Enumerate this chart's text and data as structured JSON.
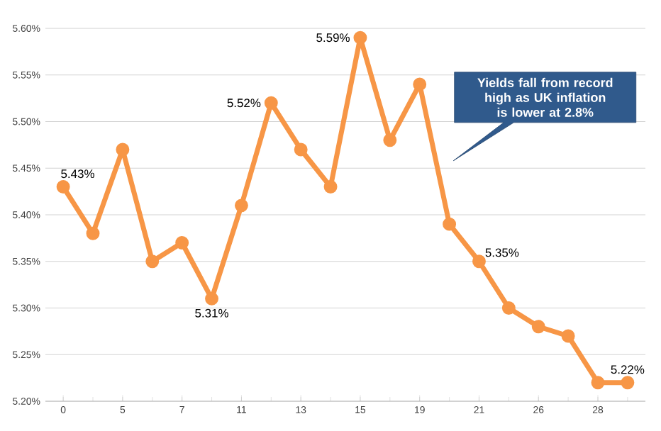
{
  "chart_data": {
    "type": "line",
    "categories": [
      "0",
      null,
      "5",
      null,
      "7",
      null,
      "11",
      null,
      "13",
      null,
      "15",
      null,
      "19",
      null,
      "21",
      null,
      "26",
      null,
      "28",
      null
    ],
    "values": [
      5.43,
      5.38,
      5.47,
      5.35,
      5.37,
      5.31,
      5.41,
      5.52,
      5.47,
      5.43,
      5.59,
      5.48,
      5.54,
      5.39,
      5.35,
      5.3,
      5.28,
      5.27,
      5.22,
      5.22
    ],
    "value_labels": [
      "5.43%",
      null,
      null,
      null,
      null,
      "5.31%",
      null,
      "5.52%",
      null,
      null,
      "5.59%",
      null,
      null,
      null,
      "5.35%",
      null,
      null,
      null,
      null,
      "5.22%"
    ],
    "color": "#f79646",
    "ylim": [
      5.2,
      5.6
    ],
    "yticks": [
      {
        "value": 5.2,
        "label": "5.20%"
      },
      {
        "value": 5.25,
        "label": "5.25%"
      },
      {
        "value": 5.3,
        "label": "5.30%"
      },
      {
        "value": 5.35,
        "label": "5.35%"
      },
      {
        "value": 5.4,
        "label": "5.40%"
      },
      {
        "value": 5.45,
        "label": "5.45%"
      },
      {
        "value": 5.5,
        "label": "5.50%"
      },
      {
        "value": 5.55,
        "label": "5.55%"
      },
      {
        "value": 5.6,
        "label": "5.60%"
      }
    ],
    "grid": "y",
    "marker": "circle",
    "line_style": "solid",
    "annotations": [
      "Yields fall from record high as UK inflation is lower at 2.8%"
    ]
  }
}
